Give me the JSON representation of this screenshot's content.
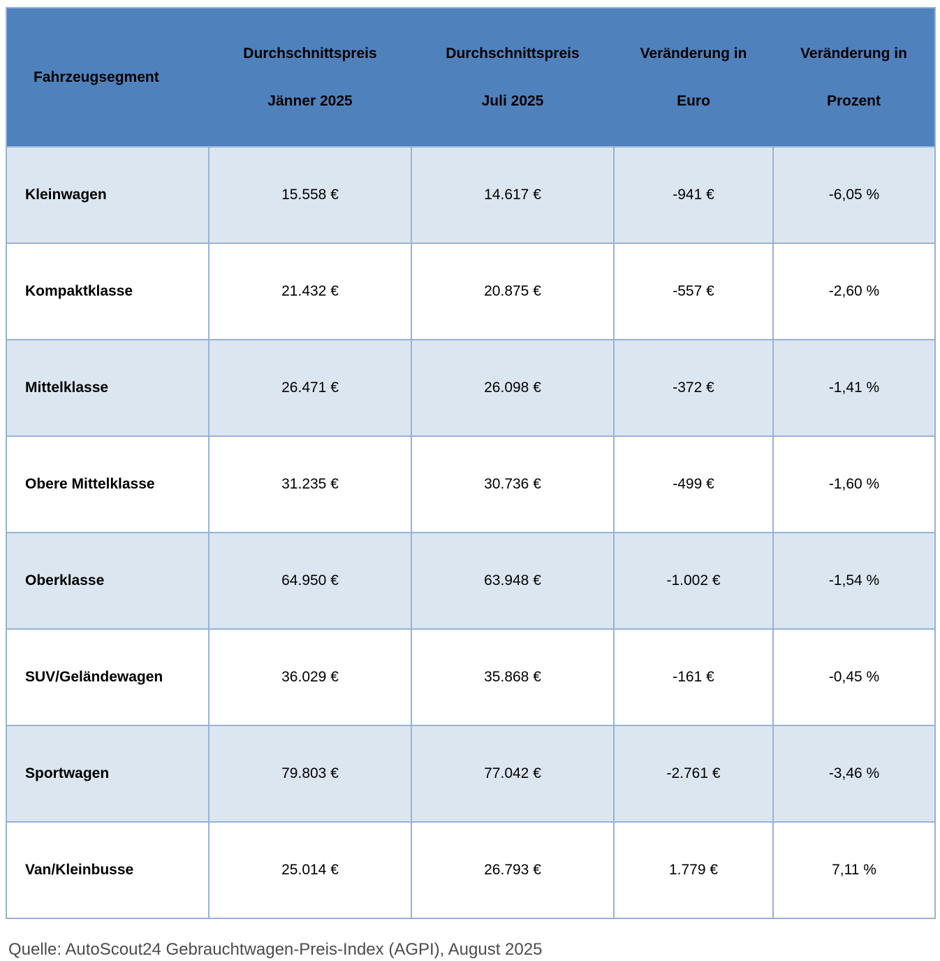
{
  "header": {
    "segment": "Fahrzeugsegment",
    "cols": [
      {
        "line1": "Durchschnittspreis",
        "line2": "Jänner 2025"
      },
      {
        "line1": "Durchschnittspreis",
        "line2": "Juli 2025"
      },
      {
        "line1": "Veränderung in",
        "line2": "Euro"
      },
      {
        "line1": "Veränderung in",
        "line2": "Prozent"
      }
    ]
  },
  "chart_data": {
    "type": "table",
    "title": "",
    "columns": [
      "Fahrzeugsegment",
      "Durchschnittspreis Jänner 2025",
      "Durchschnittspreis Juli 2025",
      "Veränderung in Euro",
      "Veränderung in Prozent"
    ],
    "rows": [
      [
        "Kleinwagen",
        "15.558 €",
        "14.617 €",
        "-941 €",
        "-6,05 %"
      ],
      [
        "Kompaktklasse",
        "21.432 €",
        "20.875 €",
        "-557 €",
        "-2,60 %"
      ],
      [
        "Mittelklasse",
        "26.471 €",
        "26.098 €",
        "-372 €",
        "-1,41 %"
      ],
      [
        "Obere Mittelklasse",
        "31.235 €",
        "30.736 €",
        "-499 €",
        "-1,60 %"
      ],
      [
        "Oberklasse",
        "64.950 €",
        "63.948 €",
        "-1.002 €",
        "-1,54 %"
      ],
      [
        "SUV/Geländewagen",
        "36.029 €",
        "35.868 €",
        "-161 €",
        "-0,45 %"
      ],
      [
        "Sportwagen",
        "79.803 €",
        "77.042 €",
        "-2.761 €",
        "-3,46 %"
      ],
      [
        "Van/Kleinbusse",
        "25.014 €",
        "26.793 €",
        "1.779 €",
        "7,11 %"
      ]
    ],
    "layout": {
      "striped_rows": true,
      "header_position": "top"
    }
  },
  "source": "Quelle: AutoScout24 Gebrauchtwagen-Preis-Index (AGPI), August 2025",
  "colors": {
    "header_background": "#4f81bd",
    "row_stripe": "#dce6f1",
    "row_plain": "#ffffff",
    "border": "#95b3d7",
    "text": "#000000",
    "source_text": "#4c4c4c"
  }
}
